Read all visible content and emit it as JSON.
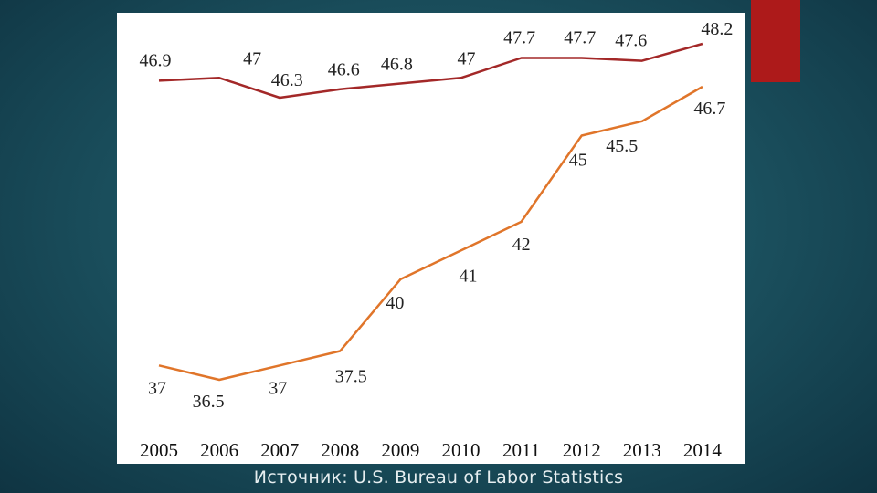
{
  "colors": {
    "series_top": "#a32828",
    "series_bottom": "#e0752a",
    "accent": "#ad1a1a"
  },
  "source": "Источник: U.S. Bureau of Labor Statistics",
  "chart_data": {
    "type": "line",
    "title": "",
    "xlabel": "",
    "ylabel": "",
    "categories": [
      "2005",
      "2006",
      "2007",
      "2008",
      "2009",
      "2010",
      "2011",
      "2012",
      "2013",
      "2014"
    ],
    "series": [
      {
        "name": "series-top",
        "values": [
          46.9,
          47,
          46.3,
          46.6,
          46.8,
          47,
          47.7,
          47.7,
          47.6,
          48.2
        ],
        "labels": [
          "46.9",
          "47",
          "46.3",
          "46.6",
          "46.8",
          "47",
          "47.7",
          "47.7",
          "47.6",
          "48.2"
        ]
      },
      {
        "name": "series-bottom",
        "values": [
          37,
          36.5,
          37,
          37.5,
          40,
          41,
          42,
          45,
          45.5,
          46.7
        ],
        "labels": [
          "37",
          "36.5",
          "37",
          "37.5",
          "40",
          "41",
          "42",
          "45",
          "45.5",
          "46.7"
        ]
      }
    ],
    "grid": false,
    "legend": "none"
  }
}
